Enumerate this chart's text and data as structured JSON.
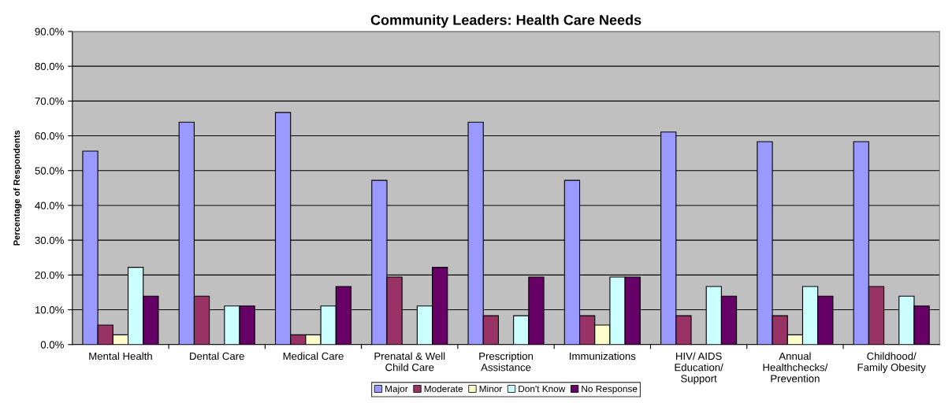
{
  "chart_data": {
    "type": "bar",
    "title": "Community Leaders: Health Care Needs",
    "ylabel": "Percentage of Respondents",
    "categories": [
      "Mental Health",
      "Dental Care",
      "Medical Care",
      "Prenatal & Well\nChild Care",
      "Prescription\nAssistance",
      "Immunizations",
      "HIV/ AIDS\nEducation/\nSupport",
      "Annual\nHealthchecks/\nPrevention",
      "Childhood/\nFamily Obesity"
    ],
    "series": [
      {
        "name": "Major",
        "color": "#9999ff",
        "values": [
          55.6,
          63.9,
          66.7,
          47.2,
          63.9,
          47.2,
          61.1,
          58.3,
          58.3
        ]
      },
      {
        "name": "Moderate",
        "color": "#993366",
        "values": [
          5.6,
          13.9,
          2.8,
          19.4,
          8.3,
          8.3,
          8.3,
          8.3,
          16.7
        ]
      },
      {
        "name": "Minor",
        "color": "#ffffcc",
        "values": [
          2.8,
          0,
          2.8,
          0,
          0,
          5.6,
          0,
          2.8,
          0
        ]
      },
      {
        "name": "Don't Know",
        "color": "#ccffff",
        "values": [
          22.2,
          11.1,
          11.1,
          11.1,
          8.3,
          19.4,
          16.7,
          16.7,
          13.9
        ]
      },
      {
        "name": "No Response",
        "color": "#660066",
        "values": [
          13.9,
          11.1,
          16.7,
          22.2,
          19.4,
          19.4,
          13.9,
          13.9,
          11.1
        ]
      }
    ],
    "ylim": [
      0,
      90
    ],
    "yticks": [
      {
        "value": 0,
        "label": "0.0%"
      },
      {
        "value": 10,
        "label": "10.0%"
      },
      {
        "value": 20,
        "label": "20.0%"
      },
      {
        "value": 30,
        "label": "30.0%"
      },
      {
        "value": 40,
        "label": "40.0%"
      },
      {
        "value": 50,
        "label": "50.0%"
      },
      {
        "value": 60,
        "label": "60.0%"
      },
      {
        "value": 70,
        "label": "70.0%"
      },
      {
        "value": 80,
        "label": "80.0%"
      },
      {
        "value": 90,
        "label": "90.0%"
      }
    ],
    "grid": "y",
    "legend": "bottom"
  }
}
